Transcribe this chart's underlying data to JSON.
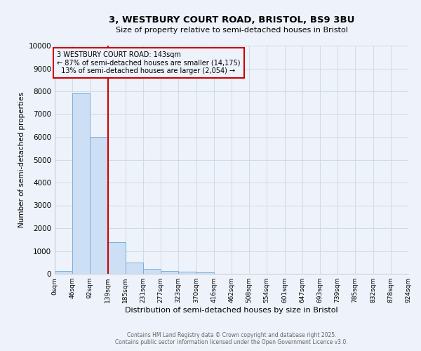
{
  "title_line1": "3, WESTBURY COURT ROAD, BRISTOL, BS9 3BU",
  "title_line2": "Size of property relative to semi-detached houses in Bristol",
  "xlabel": "Distribution of semi-detached houses by size in Bristol",
  "ylabel": "Number of semi-detached properties",
  "bin_labels": [
    "0sqm",
    "46sqm",
    "92sqm",
    "139sqm",
    "185sqm",
    "231sqm",
    "277sqm",
    "323sqm",
    "370sqm",
    "416sqm",
    "462sqm",
    "508sqm",
    "554sqm",
    "601sqm",
    "647sqm",
    "693sqm",
    "739sqm",
    "785sqm",
    "832sqm",
    "878sqm",
    "924sqm"
  ],
  "bin_edges": [
    0,
    46,
    92,
    139,
    185,
    231,
    277,
    323,
    370,
    416,
    462,
    508,
    554,
    601,
    647,
    693,
    739,
    785,
    832,
    878,
    924
  ],
  "counts": [
    130,
    7900,
    6000,
    1400,
    480,
    230,
    130,
    90,
    50,
    0,
    0,
    0,
    0,
    0,
    0,
    0,
    0,
    0,
    0,
    0
  ],
  "bar_color": "#ccdff5",
  "bar_edge_color": "#7aaed6",
  "property_value": 139,
  "property_sqm": "143sqm",
  "pct_smaller": 87,
  "n_smaller": 14175,
  "pct_larger": 13,
  "n_larger": 2054,
  "vline_color": "#cc0000",
  "annotation_border_color": "#cc0000",
  "ylim": [
    0,
    10000
  ],
  "yticks": [
    0,
    1000,
    2000,
    3000,
    4000,
    5000,
    6000,
    7000,
    8000,
    9000,
    10000
  ],
  "grid_color": "#c8d8e8",
  "background_color": "#eef2fa",
  "footer_line1": "Contains HM Land Registry data © Crown copyright and database right 2025.",
  "footer_line2": "Contains public sector information licensed under the Open Government Licence v3.0."
}
